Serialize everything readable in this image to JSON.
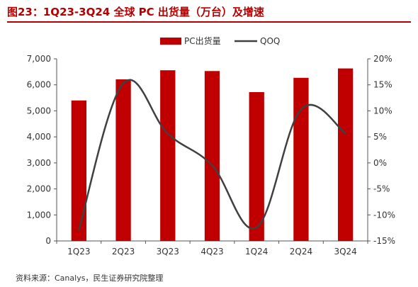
{
  "title": "图23：1Q23-3Q24 全球 PC 出货量（万台）及增速",
  "source": "资料来源：Canalys，民生证券研究院整理",
  "chart_data": {
    "type": "bar",
    "categories": [
      "1Q23",
      "2Q23",
      "3Q23",
      "4Q23",
      "1Q24",
      "2Q24",
      "3Q24"
    ],
    "series": [
      {
        "name": "PC出货量",
        "type": "bar",
        "axis": "left",
        "color": "#c00000",
        "values": [
          5400,
          6210,
          6560,
          6530,
          5720,
          6270,
          6630
        ]
      },
      {
        "name": "QOQ",
        "type": "line",
        "axis": "right",
        "color": "#404040",
        "values": [
          -12.8,
          15.3,
          5.6,
          -0.5,
          -12.4,
          10.3,
          5.7
        ]
      }
    ],
    "y_left": {
      "min": 0,
      "max": 7000,
      "step": 1000,
      "ticks": [
        "0",
        "1,000",
        "2,000",
        "3,000",
        "4,000",
        "5,000",
        "6,000",
        "7,000"
      ]
    },
    "y_right": {
      "min": -15,
      "max": 20,
      "step": 5,
      "ticks": [
        "-15%",
        "-10%",
        "-5%",
        "0%",
        "5%",
        "10%",
        "15%",
        "20%"
      ]
    },
    "legend_position": "top-center",
    "grid": false
  }
}
